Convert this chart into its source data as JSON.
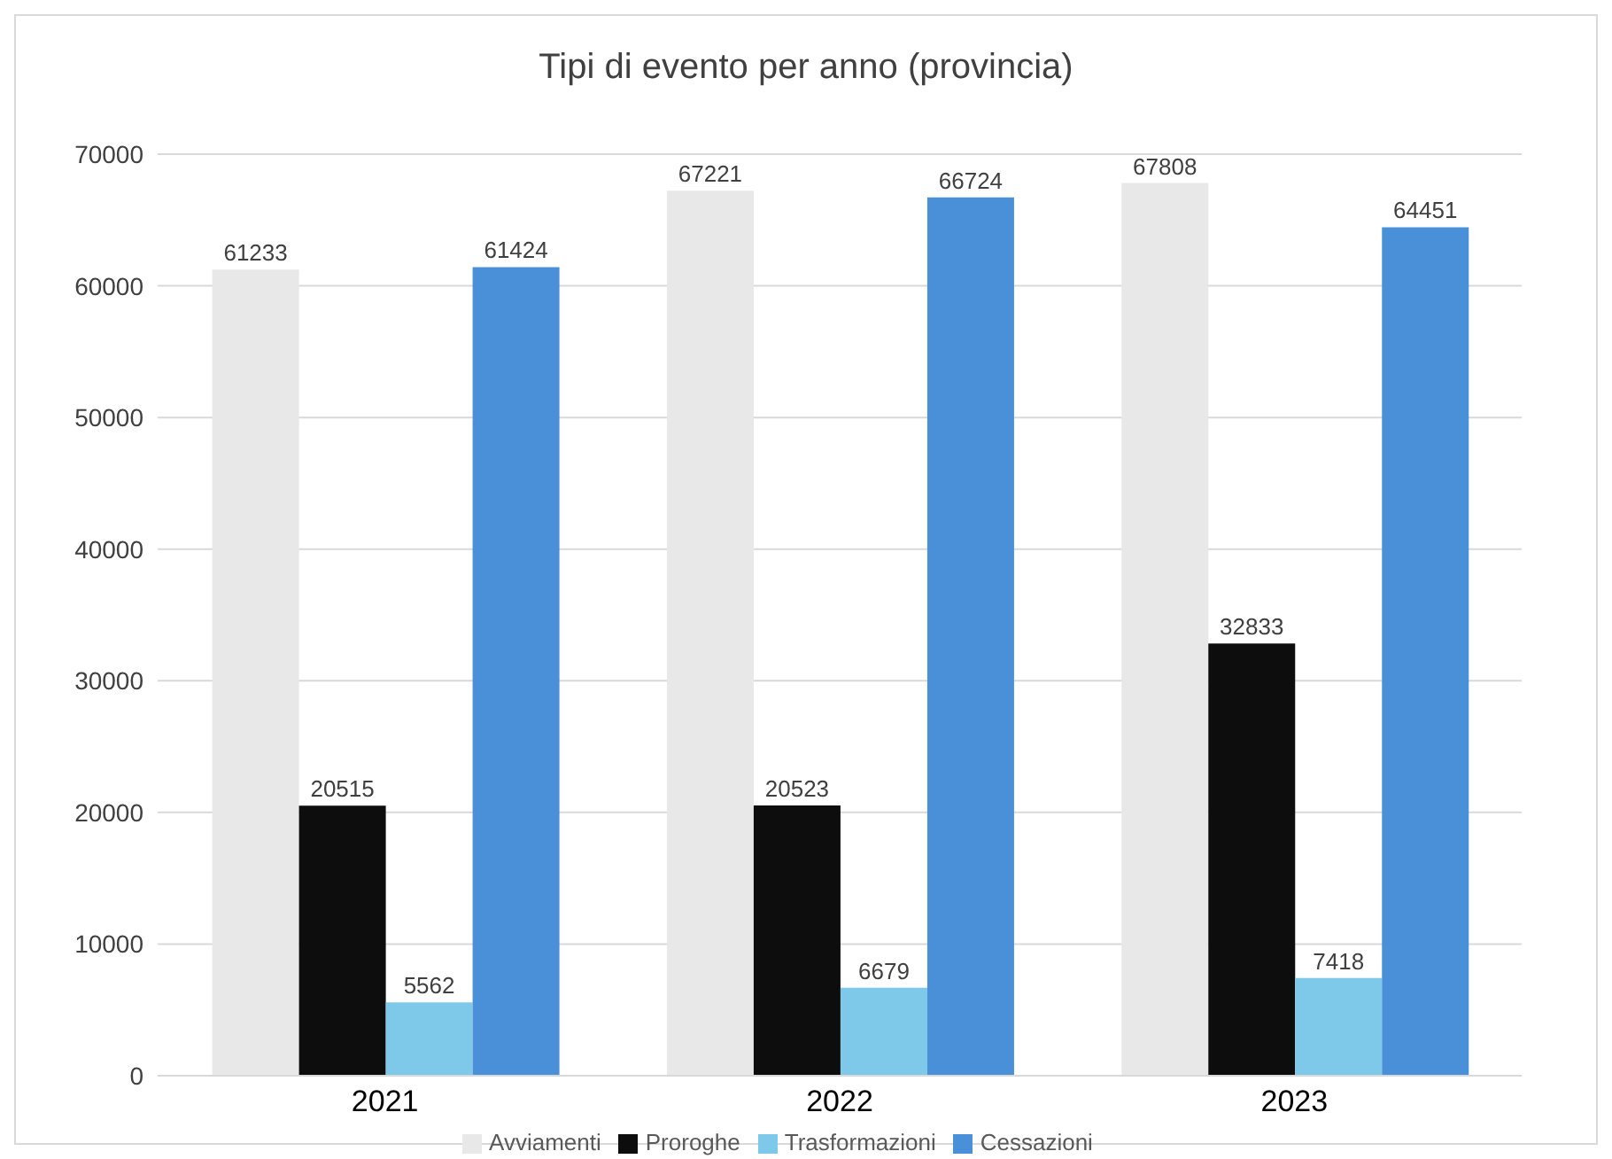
{
  "chart_data": {
    "type": "bar",
    "title": "Tipi di evento per anno (provincia)",
    "categories": [
      "2021",
      "2022",
      "2023"
    ],
    "series": [
      {
        "name": "Avviamenti",
        "color": "#e8e8e8",
        "values": [
          61233,
          67221,
          67808
        ]
      },
      {
        "name": "Proroghe",
        "color": "#0d0d0d",
        "values": [
          20515,
          20523,
          32833
        ]
      },
      {
        "name": "Trasformazioni",
        "color": "#7ec8ea",
        "values": [
          5562,
          6679,
          7418
        ]
      },
      {
        "name": "Cessazioni",
        "color": "#4a90d9",
        "values": [
          61424,
          66724,
          64451
        ]
      }
    ],
    "ylim": [
      0,
      70000
    ],
    "yticks": [
      0,
      10000,
      20000,
      30000,
      40000,
      50000,
      60000,
      70000
    ],
    "grid": "y",
    "legend": "bottom",
    "data_labels": true
  }
}
